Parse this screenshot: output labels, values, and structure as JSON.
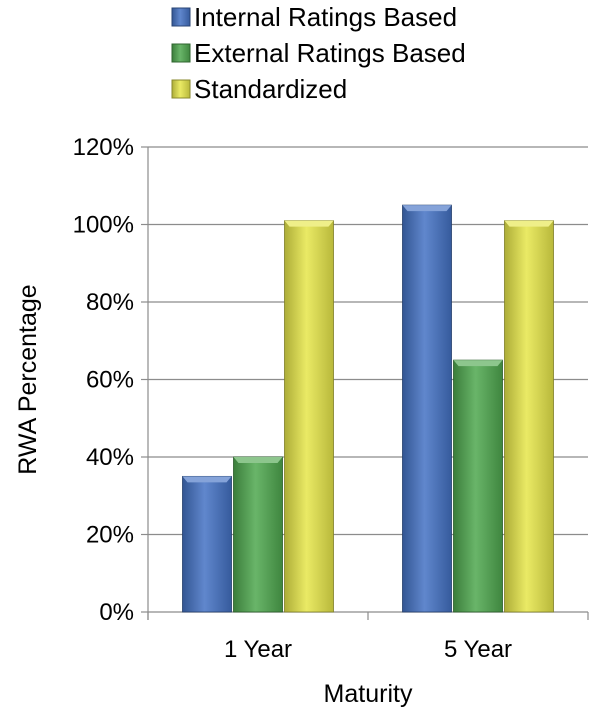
{
  "chart_data": {
    "type": "bar",
    "title": "",
    "xlabel": "Maturity",
    "ylabel": "RWA Percentage",
    "categories": [
      "1 Year",
      "5 Year"
    ],
    "series": [
      {
        "name": "Internal Ratings Based",
        "values": [
          35,
          105
        ],
        "color": "#4472c4"
      },
      {
        "name": "External Ratings Based",
        "values": [
          40,
          65
        ],
        "color": "#4fa84f"
      },
      {
        "name": "Standardized",
        "values": [
          101,
          101
        ],
        "color": "#e6e64a"
      }
    ],
    "ylim": [
      0,
      120
    ],
    "yticks": [
      0,
      20,
      40,
      60,
      80,
      100,
      120
    ],
    "ytick_labels": [
      "0%",
      "20%",
      "40%",
      "60%",
      "80%",
      "100%",
      "120%"
    ],
    "grid": true,
    "legend_position": "top"
  }
}
